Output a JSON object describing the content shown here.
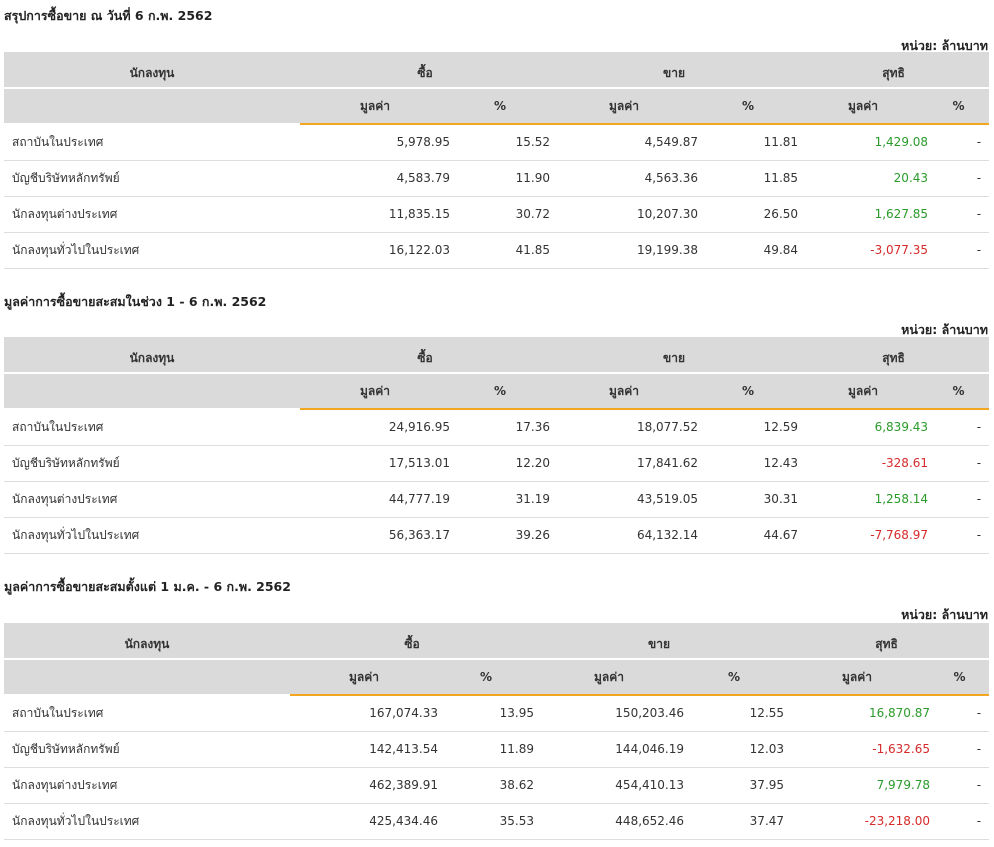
{
  "header": {
    "name": "นักลงทุน",
    "buy": "ซื้อ",
    "sell": "ขาย",
    "net": "สุทธิ",
    "value": "มูลค่า",
    "percent": "%"
  },
  "unit": "หน่วย: ล้านบาท",
  "colors": {
    "positive": "#2a9a2a",
    "negative": "#d62a2a",
    "accent": "#f4a620",
    "header_bg": "#dadada"
  },
  "sections": [
    {
      "title": "สรุปการซื้อขาย ณ วันที่ 6 ก.พ. 2562",
      "rows": [
        {
          "name": "สถาบันในประเทศ",
          "buy_value": "5,978.95",
          "buy_pct": "15.52",
          "sell_value": "4,549.87",
          "sell_pct": "11.81",
          "net_value": "1,429.08",
          "net_pct": "-",
          "sign": "pos"
        },
        {
          "name": "บัญชีบริษัทหลักทรัพย์",
          "buy_value": "4,583.79",
          "buy_pct": "11.90",
          "sell_value": "4,563.36",
          "sell_pct": "11.85",
          "net_value": "20.43",
          "net_pct": "-",
          "sign": "pos"
        },
        {
          "name": "นักลงทุนต่างประเทศ",
          "buy_value": "11,835.15",
          "buy_pct": "30.72",
          "sell_value": "10,207.30",
          "sell_pct": "26.50",
          "net_value": "1,627.85",
          "net_pct": "-",
          "sign": "pos"
        },
        {
          "name": "นักลงทุนทั่วไปในประเทศ",
          "buy_value": "16,122.03",
          "buy_pct": "41.85",
          "sell_value": "19,199.38",
          "sell_pct": "49.84",
          "net_value": "-3,077.35",
          "net_pct": "-",
          "sign": "neg"
        }
      ]
    },
    {
      "title": "มูลค่าการซื้อขายสะสมในช่วง 1 - 6 ก.พ. 2562",
      "rows": [
        {
          "name": "สถาบันในประเทศ",
          "buy_value": "24,916.95",
          "buy_pct": "17.36",
          "sell_value": "18,077.52",
          "sell_pct": "12.59",
          "net_value": "6,839.43",
          "net_pct": "-",
          "sign": "pos"
        },
        {
          "name": "บัญชีบริษัทหลักทรัพย์",
          "buy_value": "17,513.01",
          "buy_pct": "12.20",
          "sell_value": "17,841.62",
          "sell_pct": "12.43",
          "net_value": "-328.61",
          "net_pct": "-",
          "sign": "neg"
        },
        {
          "name": "นักลงทุนต่างประเทศ",
          "buy_value": "44,777.19",
          "buy_pct": "31.19",
          "sell_value": "43,519.05",
          "sell_pct": "30.31",
          "net_value": "1,258.14",
          "net_pct": "-",
          "sign": "pos"
        },
        {
          "name": "นักลงทุนทั่วไปในประเทศ",
          "buy_value": "56,363.17",
          "buy_pct": "39.26",
          "sell_value": "64,132.14",
          "sell_pct": "44.67",
          "net_value": "-7,768.97",
          "net_pct": "-",
          "sign": "neg"
        }
      ]
    },
    {
      "title": "มูลค่าการซื้อขายสะสมตั้งแต่ 1 ม.ค. - 6 ก.พ. 2562",
      "rows": [
        {
          "name": "สถาบันในประเทศ",
          "buy_value": "167,074.33",
          "buy_pct": "13.95",
          "sell_value": "150,203.46",
          "sell_pct": "12.55",
          "net_value": "16,870.87",
          "net_pct": "-",
          "sign": "pos"
        },
        {
          "name": "บัญชีบริษัทหลักทรัพย์",
          "buy_value": "142,413.54",
          "buy_pct": "11.89",
          "sell_value": "144,046.19",
          "sell_pct": "12.03",
          "net_value": "-1,632.65",
          "net_pct": "-",
          "sign": "neg"
        },
        {
          "name": "นักลงทุนต่างประเทศ",
          "buy_value": "462,389.91",
          "buy_pct": "38.62",
          "sell_value": "454,410.13",
          "sell_pct": "37.95",
          "net_value": "7,979.78",
          "net_pct": "-",
          "sign": "pos"
        },
        {
          "name": "นักลงทุนทั่วไปในประเทศ",
          "buy_value": "425,434.46",
          "buy_pct": "35.53",
          "sell_value": "448,652.46",
          "sell_pct": "37.47",
          "net_value": "-23,218.00",
          "net_pct": "-",
          "sign": "neg"
        }
      ]
    }
  ]
}
